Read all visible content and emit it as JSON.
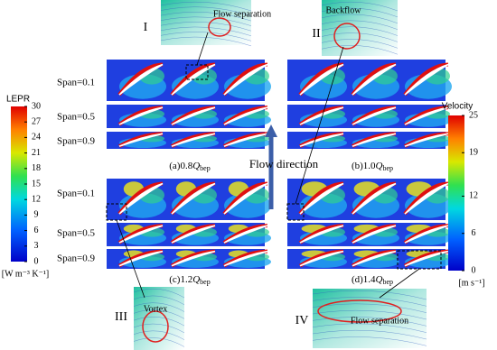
{
  "insets": [
    {
      "numeral": "I",
      "note": "Flow separation"
    },
    {
      "numeral": "II",
      "note": "Backflow"
    },
    {
      "numeral": "III",
      "note": "Vortex"
    },
    {
      "numeral": "IV",
      "note": "Flow separation"
    }
  ],
  "span_labels_top": [
    "Span=0.1",
    "Span=0.5",
    "Span=0.9"
  ],
  "span_labels_bottom": [
    "Span=0.1",
    "Span=0.5",
    "Span=0.9"
  ],
  "panels": [
    {
      "label": "(a)0.8",
      "symbol": "Q",
      "subscript": "bep"
    },
    {
      "label": "(b)1.0",
      "symbol": "Q",
      "subscript": "bep"
    },
    {
      "label": "(c)1.2",
      "symbol": "Q",
      "subscript": "bep"
    },
    {
      "label": "(d)1.4",
      "symbol": "Q",
      "subscript": "bep"
    }
  ],
  "flow_label": "Flow direction",
  "lepr_colorbar": {
    "title": "LEPR",
    "lim": [
      0,
      30
    ],
    "ticks": [
      0,
      3,
      6,
      9,
      12,
      15,
      18,
      21,
      24,
      27,
      30
    ],
    "unit": "[W m⁻³ K⁻¹]"
  },
  "velocity_colorbar": {
    "title": "Velocity",
    "lim": [
      0,
      25
    ],
    "ticks": [
      0,
      6,
      12,
      19,
      25
    ],
    "unit": "[m s⁻¹]"
  }
}
